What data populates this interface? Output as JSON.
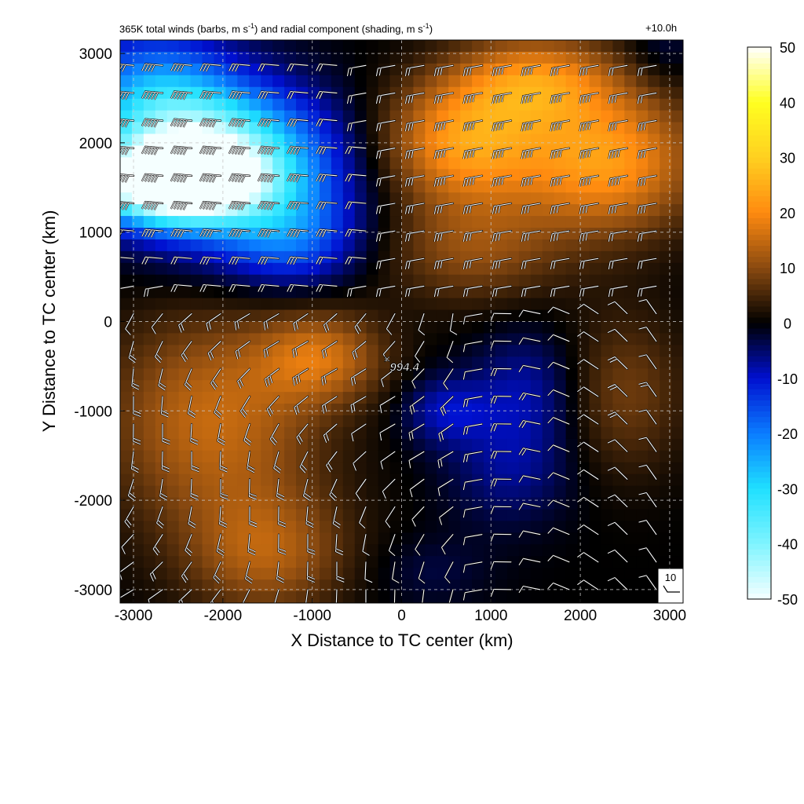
{
  "chart_data": {
    "type": "heatmap",
    "title": "365K total winds (barbs, m s-1) and radial component (shading, m s-1)",
    "title_parts": {
      "a": "365K total winds (barbs, m s",
      "sup1": "-1",
      "b": ") and radial component (shading, m s",
      "sup2": "-1",
      "c": ")"
    },
    "time_label": "+10.0h",
    "xlabel": "X Distance to TC center (km)",
    "ylabel": "Y Distance to TC center (km)",
    "xlim": [
      -3150,
      3150
    ],
    "ylim": [
      -3150,
      3150
    ],
    "xticks": [
      -3000,
      -2000,
      -1000,
      0,
      1000,
      2000,
      3000
    ],
    "yticks": [
      -3000,
      -2000,
      -1000,
      0,
      1000,
      2000,
      3000
    ],
    "grid": true,
    "colorbar": {
      "min": -50,
      "max": 50,
      "ticks": [
        50,
        40,
        30,
        20,
        10,
        0,
        -10,
        -20,
        -30,
        -40,
        -50
      ],
      "stops": [
        {
          "v": -50,
          "color": "#f5ffff"
        },
        {
          "v": -40,
          "color": "#7ff4ff"
        },
        {
          "v": -30,
          "color": "#1fe0ff"
        },
        {
          "v": -20,
          "color": "#0a7cff"
        },
        {
          "v": -10,
          "color": "#0010d0"
        },
        {
          "v": 0,
          "color": "#000000"
        },
        {
          "v": 10,
          "color": "#8a4a10"
        },
        {
          "v": 20,
          "color": "#ff8a10"
        },
        {
          "v": 30,
          "color": "#ffd020"
        },
        {
          "v": 40,
          "color": "#ffff20"
        },
        {
          "v": 50,
          "color": "#ffffff"
        }
      ]
    },
    "radial_wind_field": [
      {
        "x": -2600,
        "y": 1550,
        "v": -48,
        "sx": 900,
        "sy": 400
      },
      {
        "x": -2300,
        "y": 1900,
        "v": -30,
        "sx": 1100,
        "sy": 700
      },
      {
        "x": -1800,
        "y": 1600,
        "v": -20,
        "sx": 1200,
        "sy": 900
      },
      {
        "x": -2800,
        "y": 2600,
        "v": -18,
        "sx": 900,
        "sy": 700
      },
      {
        "x": -1200,
        "y": 900,
        "v": -12,
        "sx": 700,
        "sy": 500
      },
      {
        "x": 700,
        "y": 2000,
        "v": 22,
        "sx": 900,
        "sy": 700
      },
      {
        "x": 2300,
        "y": 1800,
        "v": 22,
        "sx": 1000,
        "sy": 800
      },
      {
        "x": 1500,
        "y": 2700,
        "v": 18,
        "sx": 900,
        "sy": 500
      },
      {
        "x": 800,
        "y": 800,
        "v": 10,
        "sx": 1000,
        "sy": 600
      },
      {
        "x": -2100,
        "y": -1100,
        "v": 15,
        "sx": 1200,
        "sy": 1200
      },
      {
        "x": -900,
        "y": -400,
        "v": 14,
        "sx": 700,
        "sy": 500
      },
      {
        "x": -1500,
        "y": -2600,
        "v": 12,
        "sx": 900,
        "sy": 700
      },
      {
        "x": 2500,
        "y": -800,
        "v": 8,
        "sx": 700,
        "sy": 900
      },
      {
        "x": 500,
        "y": -1000,
        "v": -9,
        "sx": 500,
        "sy": 400
      },
      {
        "x": 1400,
        "y": -800,
        "v": -8,
        "sx": 600,
        "sy": 700
      },
      {
        "x": 1200,
        "y": -1700,
        "v": -6,
        "sx": 700,
        "sy": 600
      },
      {
        "x": 2900,
        "y": 3000,
        "v": -4,
        "sx": 400,
        "sy": 400
      },
      {
        "x": 300,
        "y": -2800,
        "v": -3,
        "sx": 700,
        "sy": 400
      }
    ],
    "center_marker": {
      "x": -150,
      "y": -430,
      "symbol": "×"
    },
    "center_label": "994.4",
    "reference_barb": {
      "label": "10",
      "speed": 10
    }
  }
}
